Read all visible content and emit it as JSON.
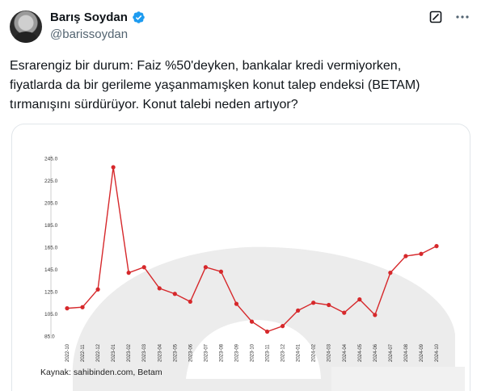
{
  "author": {
    "name": "Barış Soydan",
    "handle": "@barissoydan",
    "verified": true,
    "verified_color": "#1d9bf0"
  },
  "icons": {
    "grok": "grok-icon",
    "more": "more-icon"
  },
  "tweet": {
    "lines": [
      "Esrarengiz bir durum: Faiz %50'deyken, bankalar kredi vermiyorken,",
      "fiyatlarda da bir gerileme yaşanmamışken konut talep endeksi (BETAM)",
      "tırmanışını sürdürüyor. Konut talebi neden artıyor?"
    ]
  },
  "media": {
    "source": "Kaynak: sahibinden.com, Betam"
  },
  "chart_data": {
    "type": "line",
    "color": "#d6282b",
    "grid": false,
    "y_ticks": [
      "245.0",
      "225.0",
      "205.0",
      "185.0",
      "165.0",
      "145.0",
      "125.0",
      "105.0",
      "85.0"
    ],
    "ylim": [
      85,
      245
    ],
    "categories": [
      "2022-10",
      "2022-11",
      "2022-12",
      "2023-01",
      "2023-02",
      "2023-03",
      "2023-04",
      "2023-05",
      "2023-06",
      "2023-07",
      "2023-08",
      "2023-09",
      "2023-10",
      "2023-11",
      "2023-12",
      "2024-01",
      "2024-02",
      "2024-03",
      "2024-04",
      "2024-05",
      "2024-06",
      "2024-07",
      "2024-08",
      "2024-09",
      "2024-10"
    ],
    "series": [
      {
        "values": [
          110,
          111,
          127,
          237,
          142,
          147,
          128,
          123,
          116,
          147,
          143,
          114,
          98,
          89,
          94,
          108,
          115,
          113,
          106,
          118,
          104,
          142,
          157,
          159,
          166
        ]
      }
    ]
  }
}
